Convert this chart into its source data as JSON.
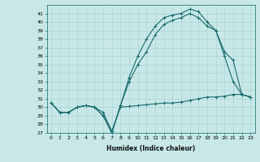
{
  "xlabel": "Humidex (Indice chaleur)",
  "bg_color": "#c8e8e8",
  "grid_color": "#aad4d4",
  "line_color": "#1a6b6b",
  "xlim": [
    -0.5,
    23.5
  ],
  "ylim": [
    27,
    42
  ],
  "yticks": [
    27,
    28,
    29,
    30,
    31,
    32,
    33,
    34,
    35,
    36,
    37,
    38,
    39,
    40,
    41
  ],
  "xticks": [
    0,
    1,
    2,
    3,
    4,
    5,
    6,
    7,
    8,
    9,
    10,
    11,
    12,
    13,
    14,
    15,
    16,
    17,
    18,
    19,
    20,
    21,
    22,
    23
  ],
  "xtick_labels": [
    "0",
    "1",
    "2",
    "3",
    "4",
    "5",
    "6",
    "7",
    "8",
    "9",
    "10",
    "11",
    "12",
    "13",
    "14",
    "15",
    "16",
    "17",
    "18",
    "19",
    "20",
    "21",
    "22",
    "23"
  ],
  "s1_x": [
    0,
    1,
    2,
    3,
    4,
    5,
    6,
    7,
    8,
    9,
    10,
    11,
    12,
    13,
    14,
    15,
    16,
    17,
    18,
    19,
    20,
    21,
    22,
    23
  ],
  "s1_y": [
    30.5,
    29.4,
    29.4,
    30.0,
    30.2,
    30.0,
    29.4,
    27.2,
    30.0,
    30.1,
    30.2,
    30.3,
    30.4,
    30.5,
    30.5,
    30.6,
    30.8,
    31.0,
    31.2,
    31.2,
    31.3,
    31.5,
    31.5,
    31.2
  ],
  "s2_x": [
    0,
    1,
    2,
    3,
    4,
    5,
    6,
    7,
    8,
    9,
    10,
    11,
    12,
    13,
    14,
    15,
    16,
    17,
    18,
    19,
    20,
    21,
    22,
    23
  ],
  "s2_y": [
    30.5,
    29.4,
    29.4,
    30.0,
    30.2,
    30.0,
    29.0,
    27.0,
    30.2,
    33.5,
    36.0,
    38.0,
    39.5,
    40.5,
    40.8,
    41.0,
    41.5,
    41.2,
    40.0,
    39.0,
    36.0,
    33.0,
    31.5,
    31.2
  ],
  "s3_x": [
    0,
    1,
    2,
    3,
    4,
    5,
    6,
    7,
    8,
    9,
    10,
    11,
    12,
    13,
    14,
    15,
    16,
    17,
    18,
    19,
    20,
    21,
    22,
    23
  ],
  "s3_y": [
    30.5,
    29.4,
    29.4,
    30.0,
    30.2,
    30.0,
    29.0,
    27.0,
    30.2,
    33.0,
    35.0,
    36.5,
    38.5,
    39.7,
    40.2,
    40.5,
    41.0,
    40.5,
    39.5,
    39.0,
    36.5,
    35.5,
    31.5,
    31.2
  ],
  "xlabel_fontsize": 5.5,
  "tick_fontsize": 4.5
}
